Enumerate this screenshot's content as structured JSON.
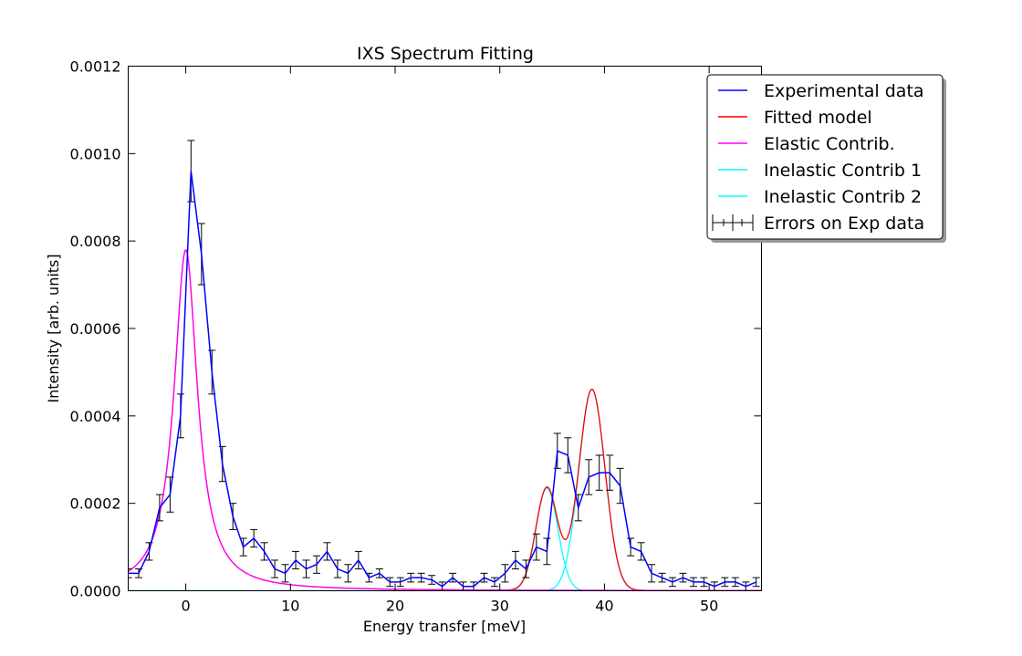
{
  "chart_data": {
    "type": "line",
    "title": "IXS Spectrum Fitting",
    "xlabel": "Energy transfer [meV]",
    "ylabel": "Intensity [arb. units]",
    "xlim": [
      -5.5,
      55
    ],
    "ylim": [
      0,
      0.0012
    ],
    "x_ticks": [
      0,
      10,
      20,
      30,
      40,
      50
    ],
    "x_tick_labels": [
      "0",
      "10",
      "20",
      "30",
      "40",
      "50"
    ],
    "y_ticks": [
      0,
      0.0002,
      0.0004,
      0.0006,
      0.0008,
      0.001,
      0.0012
    ],
    "y_tick_labels": [
      "0.0000",
      "0.0002",
      "0.0004",
      "0.0006",
      "0.0008",
      "0.0010",
      "0.0012"
    ],
    "grid": false,
    "legend_position": "top-right",
    "legend": [
      {
        "label": "Experimental data",
        "color": "#0000ff",
        "style": "line"
      },
      {
        "label": "Fitted model",
        "color": "#ff0000",
        "style": "line"
      },
      {
        "label": "Elastic Contrib.",
        "color": "#ff00ff",
        "style": "line"
      },
      {
        "label": "Inelastic Contrib 1",
        "color": "#00ffff",
        "style": "line"
      },
      {
        "label": "Inelastic Contrib 2",
        "color": "#00ffff",
        "style": "line"
      },
      {
        "label": "Errors on Exp data",
        "color": "#000000",
        "style": "errorbar"
      }
    ],
    "experimental": {
      "name": "Experimental data",
      "color": "#0000ff",
      "x": [
        -5.5,
        -4.5,
        -3.5,
        -2.5,
        -1.5,
        -0.5,
        0.5,
        1.5,
        2.5,
        3.5,
        4.5,
        5.5,
        6.5,
        7.5,
        8.5,
        9.5,
        10.5,
        11.5,
        12.5,
        13.5,
        14.5,
        15.5,
        16.5,
        17.5,
        18.5,
        19.5,
        20.5,
        21.5,
        22.5,
        23.5,
        24.5,
        25.5,
        26.5,
        27.5,
        28.5,
        29.5,
        30.5,
        31.5,
        32.5,
        33.5,
        34.5,
        35.5,
        36.5,
        37.5,
        38.5,
        39.5,
        40.5,
        41.5,
        42.5,
        43.5,
        44.5,
        45.5,
        46.5,
        47.5,
        48.5,
        49.5,
        50.5,
        51.5,
        52.5,
        53.5,
        54.5
      ],
      "y": [
        4e-05,
        4e-05,
        9e-05,
        0.00019,
        0.00022,
        0.0004,
        0.00096,
        0.00077,
        0.0005,
        0.00029,
        0.00017,
        0.0001,
        0.00012,
        9e-05,
        5e-05,
        4e-05,
        7e-05,
        5e-05,
        6e-05,
        9e-05,
        5e-05,
        4e-05,
        7e-05,
        3e-05,
        4e-05,
        2e-05,
        2e-05,
        3e-05,
        3e-05,
        2.5e-05,
        1e-05,
        3e-05,
        1e-05,
        1e-05,
        3e-05,
        2e-05,
        4e-05,
        7e-05,
        5e-05,
        0.0001,
        9e-05,
        0.00032,
        0.00031,
        0.00019,
        0.00026,
        0.00027,
        0.00027,
        0.00024,
        0.0001,
        9e-05,
        4e-05,
        3e-05,
        2e-05,
        3e-05,
        2e-05,
        2e-05,
        1e-05,
        2e-05,
        2e-05,
        1e-05,
        2e-05
      ],
      "yerr": [
        1e-05,
        1e-05,
        2e-05,
        3e-05,
        4e-05,
        5e-05,
        7e-05,
        7e-05,
        5e-05,
        4e-05,
        3e-05,
        2e-05,
        2e-05,
        2e-05,
        2e-05,
        2e-05,
        2e-05,
        2e-05,
        2e-05,
        2e-05,
        2e-05,
        2e-05,
        2e-05,
        1e-05,
        1e-05,
        1e-05,
        1e-05,
        1e-05,
        1e-05,
        1e-05,
        1e-05,
        1e-05,
        1e-05,
        1e-05,
        1e-05,
        1e-05,
        2e-05,
        2e-05,
        2e-05,
        3e-05,
        3e-05,
        4e-05,
        4e-05,
        3e-05,
        4e-05,
        4e-05,
        4e-05,
        4e-05,
        2e-05,
        2e-05,
        2e-05,
        1e-05,
        1e-05,
        1e-05,
        1e-05,
        1e-05,
        1e-05,
        1e-05,
        1e-05,
        1e-05,
        1e-05
      ]
    },
    "model_components": {
      "elastic": {
        "name": "Elastic Contrib.",
        "color": "#ff00ff",
        "center": 0,
        "peak": 0.00078,
        "hwhm": 1.35
      },
      "inelastic_1": {
        "name": "Inelastic Contrib 1",
        "color": "#00ffff",
        "center": 34.5,
        "peak": 0.000235,
        "sigma": 1.05
      },
      "inelastic_2": {
        "name": "Inelastic Contrib 2",
        "color": "#00ffff",
        "center": 38.8,
        "peak": 0.00046,
        "sigma": 1.25
      },
      "fitted": {
        "name": "Fitted model",
        "color": "#ff0000"
      }
    }
  }
}
